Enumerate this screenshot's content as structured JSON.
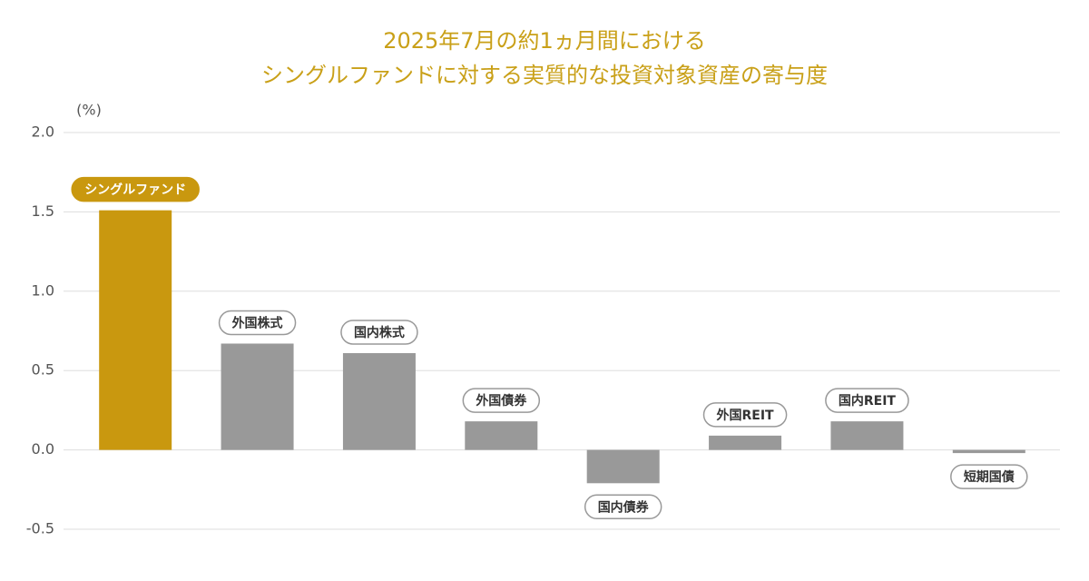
{
  "chart_data": {
    "type": "bar",
    "title_lines": [
      "2025年7月の約1ヵ月間における",
      "シングルファンドに対する実質的な投資対象資産の寄与度"
    ],
    "y_label": "(%)",
    "categories": [
      "シングルファンド",
      "外国株式",
      "国内株式",
      "外国債券",
      "国内債券",
      "外国REIT",
      "国内REIT",
      "短期国債"
    ],
    "values": [
      1.51,
      0.67,
      0.61,
      0.18,
      -0.21,
      0.09,
      0.18,
      -0.02
    ],
    "colors": [
      "#c9980f",
      "#999999",
      "#999999",
      "#999999",
      "#999999",
      "#999999",
      "#999999",
      "#999999"
    ],
    "ylim": [
      -0.5,
      2.0
    ],
    "yticks": [
      {
        "value": -0.5,
        "label": "-0.5"
      },
      {
        "value": 0,
        "label": "0.0"
      },
      0.5,
      {
        "value": 1,
        "label": "1.0"
      },
      1.5,
      {
        "value": 2,
        "label": "2.0"
      }
    ],
    "grid": true
  }
}
